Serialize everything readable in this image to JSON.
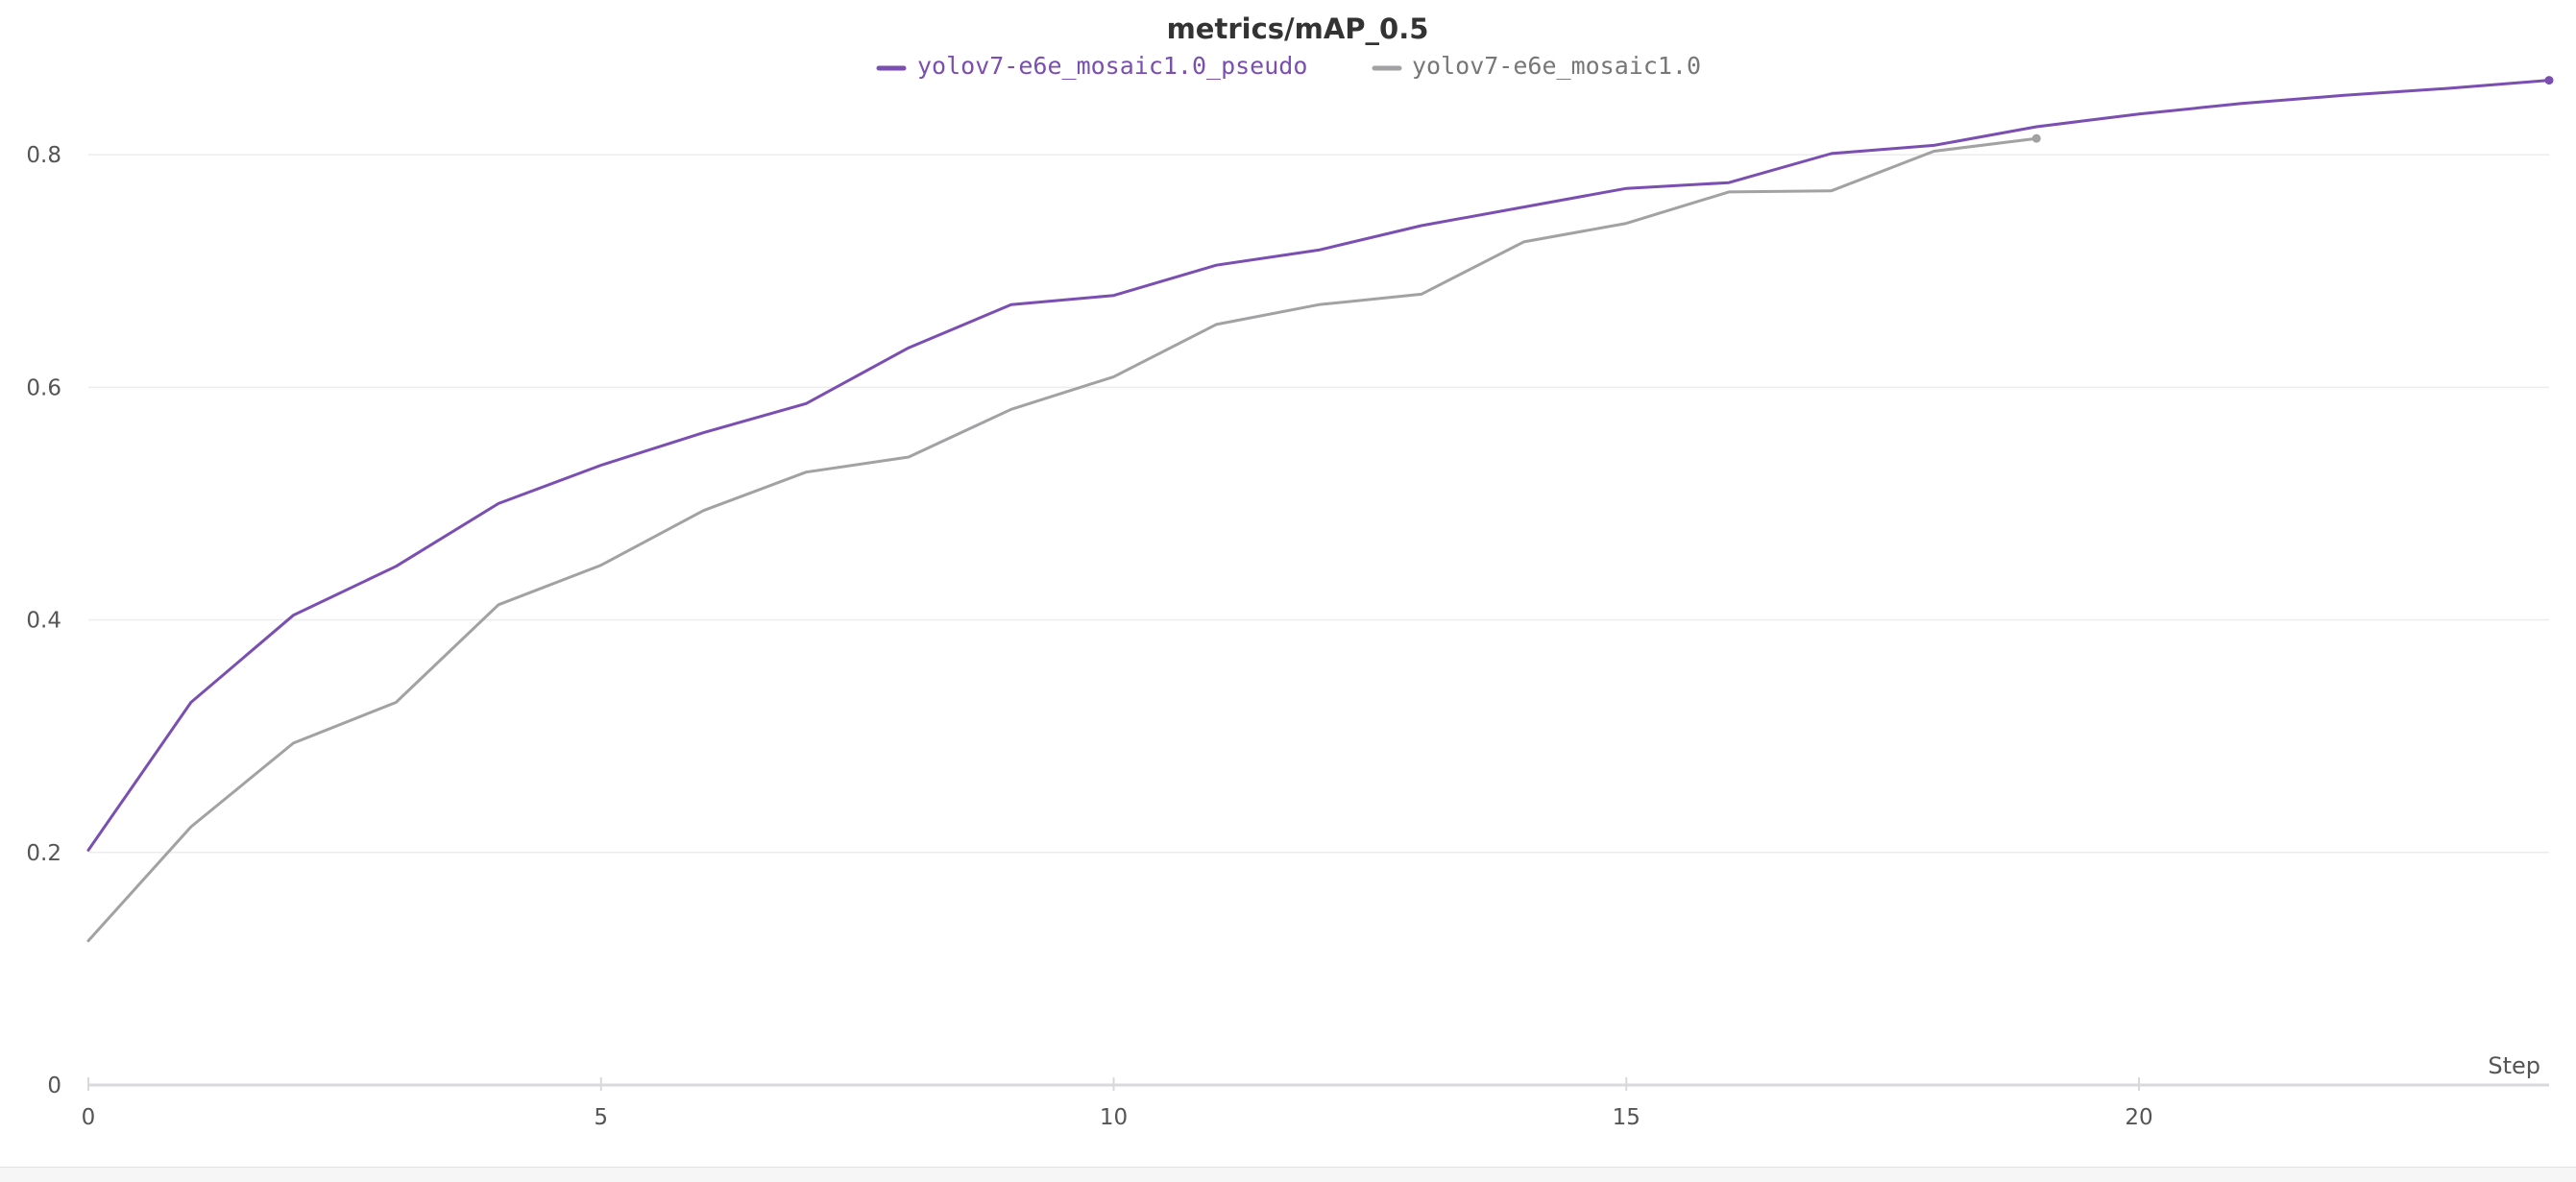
{
  "chart_data": {
    "type": "line",
    "title": "metrics/mAP_0.5",
    "xlabel": "Step",
    "ylabel": "",
    "xlim": [
      0,
      24
    ],
    "ylim": [
      0,
      0.9
    ],
    "xticks": [
      0,
      5,
      10,
      15,
      20
    ],
    "yticks": [
      0,
      0.2,
      0.4,
      0.6,
      0.8
    ],
    "ytick_labels": [
      "0",
      "0.2",
      "0.4",
      "0.6",
      "0.8"
    ],
    "grid": "horizontal",
    "legend_position": "top-center",
    "series": [
      {
        "name": "yolov7-e6e_mosaic1.0_pseudo",
        "color": "#7a4fb1",
        "x": [
          0,
          1,
          2,
          3,
          4,
          5,
          6,
          7,
          8,
          9,
          10,
          11,
          12,
          13,
          14,
          15,
          16,
          17,
          18,
          19,
          20,
          21,
          22,
          23,
          24
        ],
        "values": [
          0.202,
          0.329,
          0.404,
          0.446,
          0.5,
          0.533,
          0.561,
          0.586,
          0.634,
          0.671,
          0.679,
          0.705,
          0.718,
          0.739,
          0.755,
          0.771,
          0.776,
          0.801,
          0.808,
          0.824,
          0.835,
          0.844,
          0.851,
          0.857,
          0.864
        ]
      },
      {
        "name": "yolov7-e6e_mosaic1.0",
        "color": "#a2a2a4",
        "x": [
          0,
          1,
          2,
          3,
          4,
          5,
          6,
          7,
          8,
          9,
          10,
          11,
          12,
          13,
          14,
          15,
          16,
          17,
          18,
          19
        ],
        "values": [
          0.124,
          0.222,
          0.294,
          0.329,
          0.413,
          0.447,
          0.494,
          0.527,
          0.54,
          0.581,
          0.609,
          0.654,
          0.671,
          0.68,
          0.725,
          0.741,
          0.768,
          0.769,
          0.803,
          0.814
        ]
      }
    ]
  }
}
